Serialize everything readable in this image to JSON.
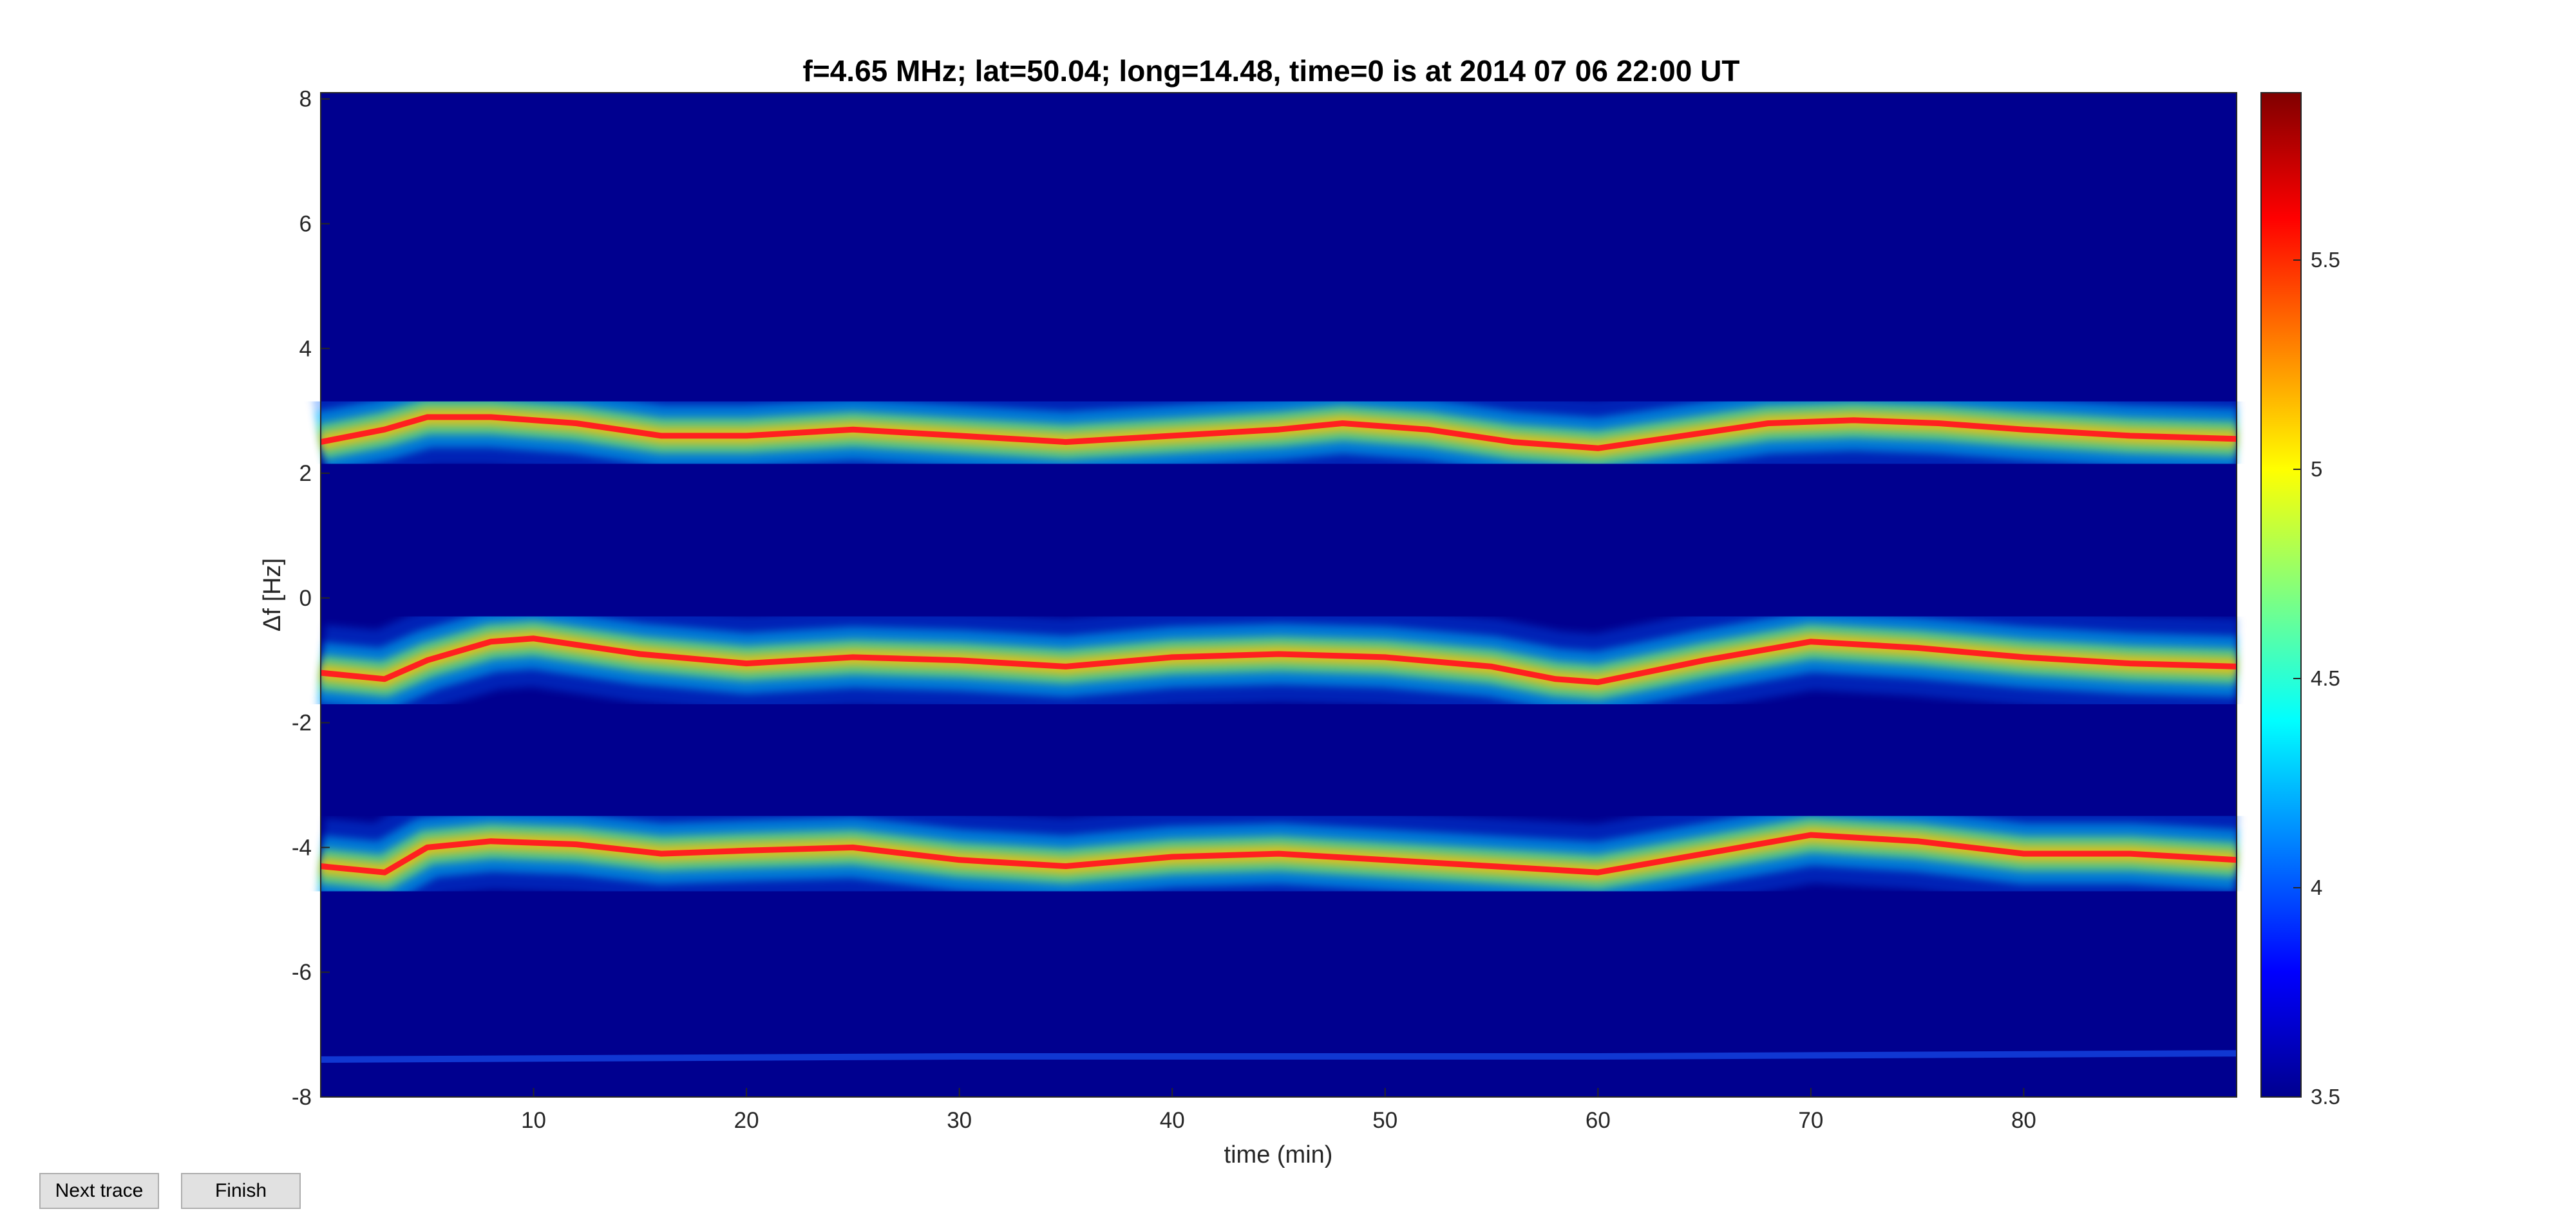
{
  "chart_data": {
    "type": "heatmap",
    "title": "f=4.65 MHz;  lat=50.04; long=14.48, time=0 is at 2014 07 06 22:00 UT",
    "xlabel": "time (min)",
    "ylabel": "Δf [Hz]",
    "xlim": [
      0,
      90
    ],
    "ylim": [
      -8,
      8.1
    ],
    "xticks": [
      10,
      20,
      30,
      40,
      50,
      60,
      70,
      80
    ],
    "yticks": [
      -8,
      -6,
      -4,
      -2,
      0,
      2,
      4,
      6,
      8
    ],
    "colormap": "jet",
    "clim": [
      3.5,
      5.9
    ],
    "colorbar_ticks": [
      3.5,
      4,
      4.5,
      5,
      5.5
    ],
    "background_color": "#00008f",
    "traces": [
      {
        "name": "upper trace",
        "x": [
          0,
          3,
          5,
          8,
          12,
          16,
          20,
          25,
          30,
          35,
          40,
          45,
          48,
          52,
          56,
          60,
          64,
          68,
          72,
          76,
          80,
          85,
          90
        ],
        "y": [
          2.5,
          2.7,
          2.9,
          2.9,
          2.8,
          2.6,
          2.6,
          2.7,
          2.6,
          2.5,
          2.6,
          2.7,
          2.8,
          2.7,
          2.5,
          2.4,
          2.6,
          2.8,
          2.85,
          2.8,
          2.7,
          2.6,
          2.55
        ]
      },
      {
        "name": "middle trace",
        "x": [
          0,
          3,
          5,
          8,
          10,
          15,
          20,
          25,
          30,
          35,
          40,
          45,
          50,
          55,
          58,
          60,
          65,
          70,
          75,
          80,
          85,
          90
        ],
        "y": [
          -1.2,
          -1.3,
          -1.0,
          -0.7,
          -0.65,
          -0.9,
          -1.05,
          -0.95,
          -1.0,
          -1.1,
          -0.95,
          -0.9,
          -0.95,
          -1.1,
          -1.3,
          -1.35,
          -1.0,
          -0.7,
          -0.8,
          -0.95,
          -1.05,
          -1.1
        ]
      },
      {
        "name": "lower trace",
        "x": [
          0,
          3,
          5,
          8,
          12,
          16,
          20,
          25,
          30,
          35,
          40,
          45,
          50,
          55,
          60,
          65,
          70,
          75,
          80,
          85,
          90
        ],
        "y": [
          -4.3,
          -4.4,
          -4.0,
          -3.9,
          -3.95,
          -4.1,
          -4.05,
          -4.0,
          -4.2,
          -4.3,
          -4.15,
          -4.1,
          -4.2,
          -4.3,
          -4.4,
          -4.1,
          -3.8,
          -3.9,
          -4.1,
          -4.1,
          -4.2
        ]
      },
      {
        "name": "faint bottom line",
        "x": [
          0,
          30,
          60,
          90
        ],
        "y": [
          -7.4,
          -7.35,
          -7.35,
          -7.3
        ]
      }
    ]
  },
  "buttons": {
    "next_label": "Next trace",
    "finish_label": "Finish"
  },
  "colors": {
    "trace_line": "#ff2020",
    "background": "#00008f"
  }
}
